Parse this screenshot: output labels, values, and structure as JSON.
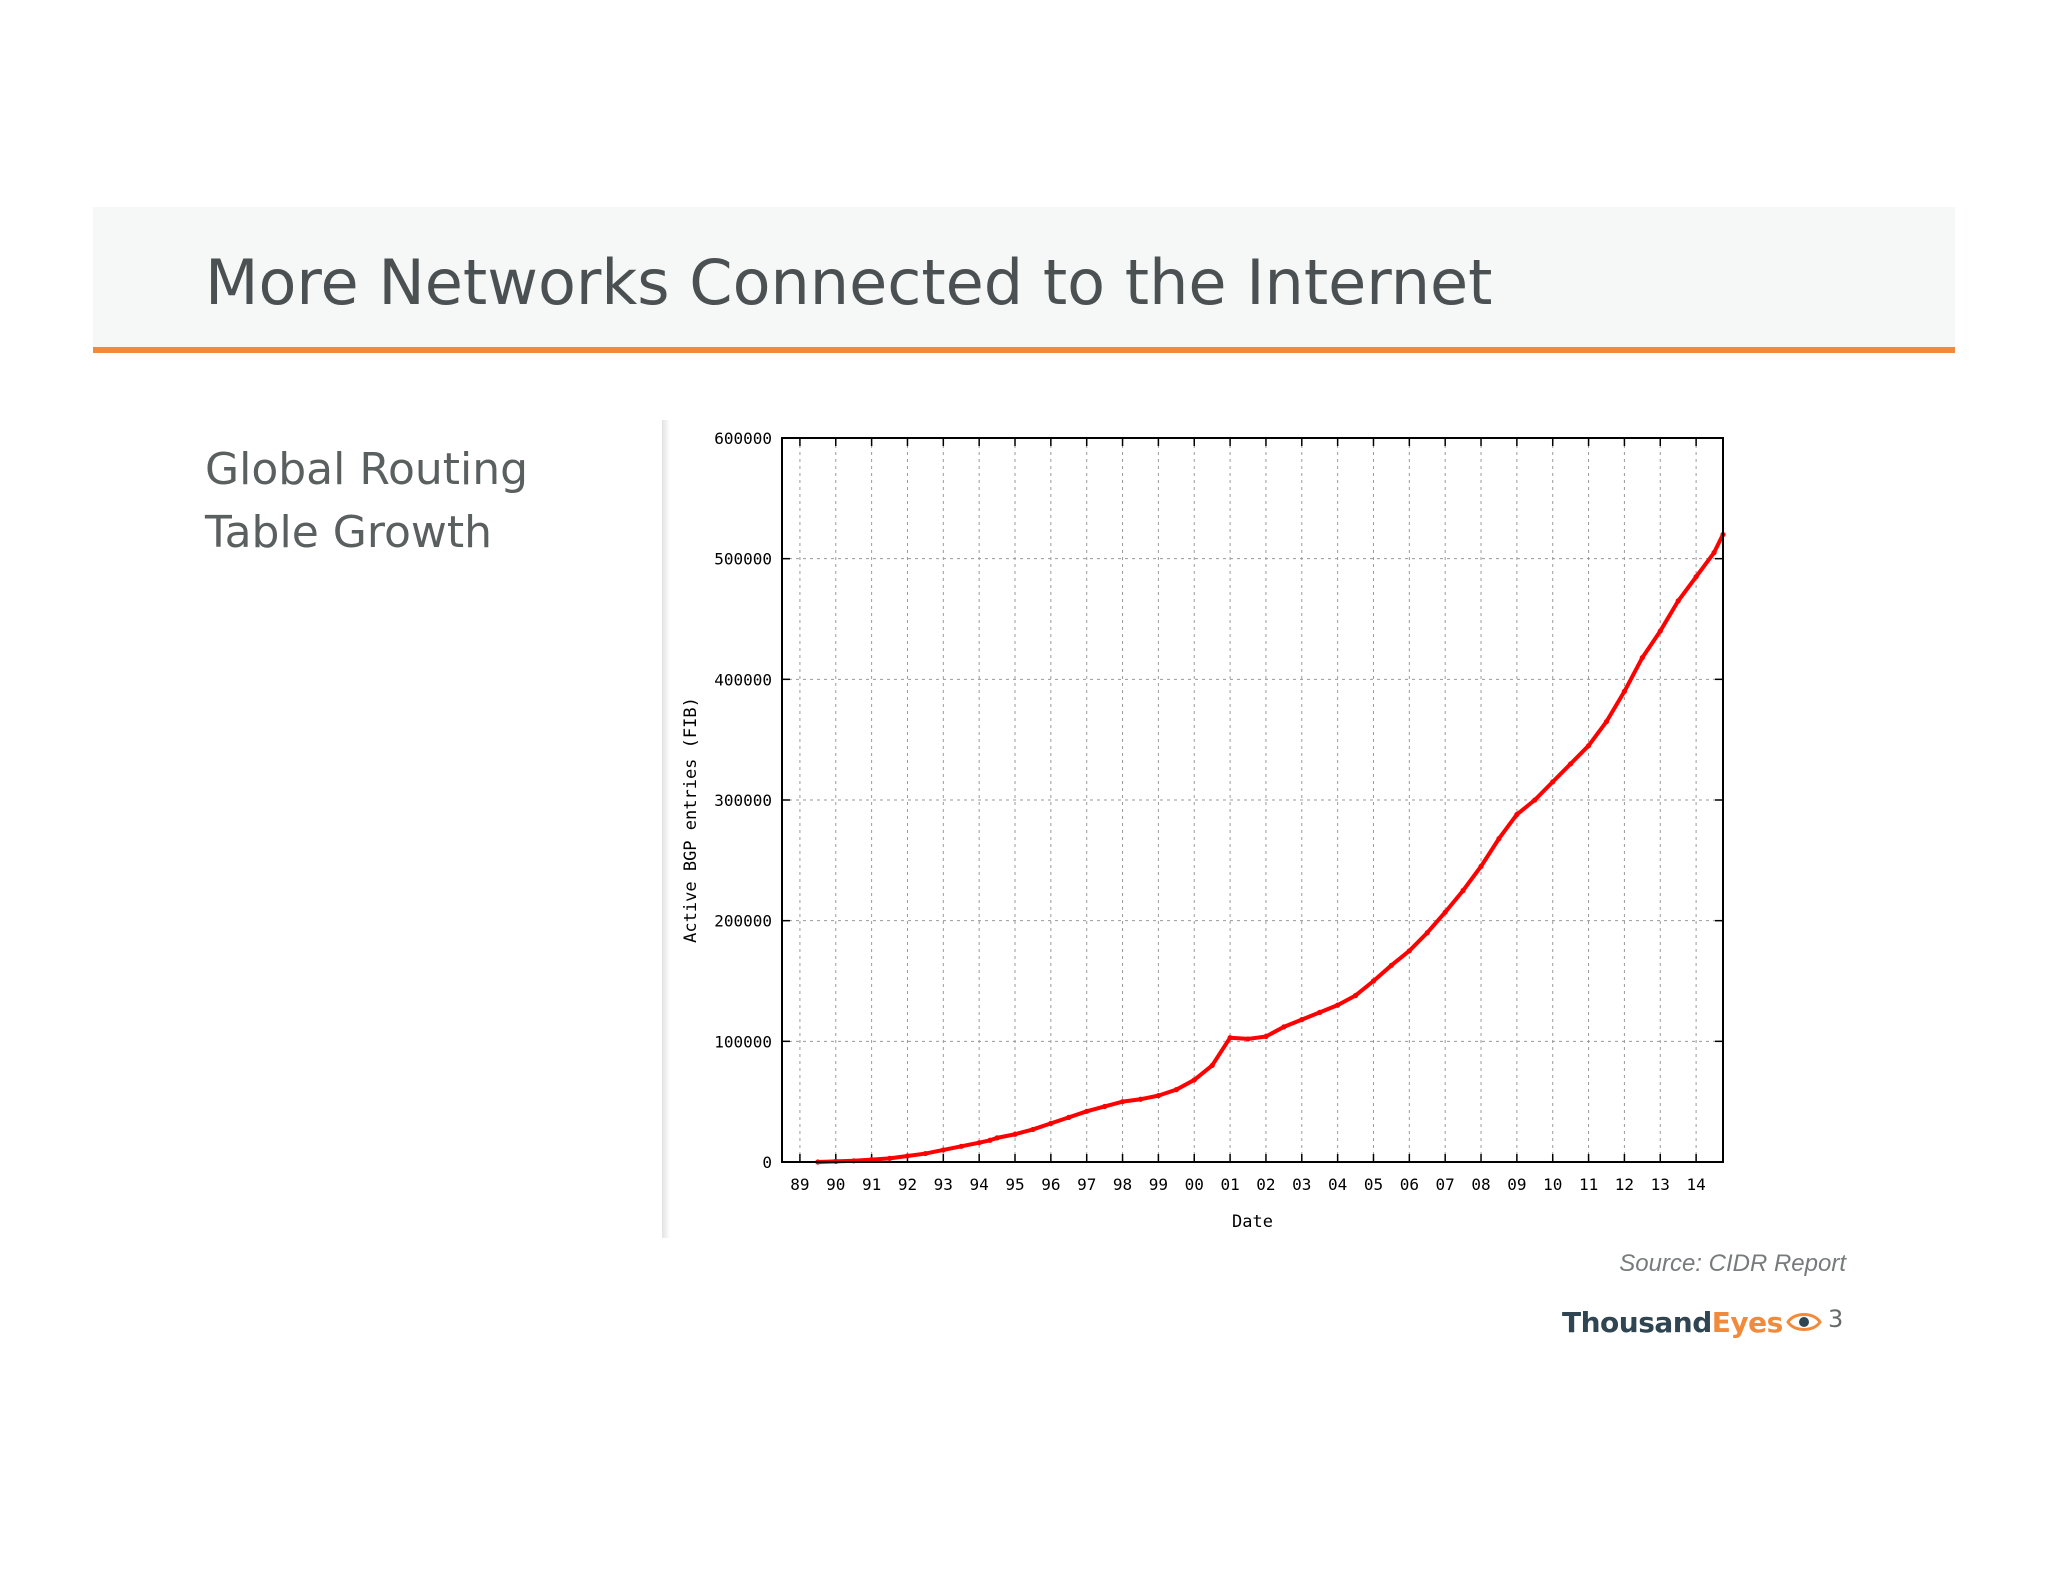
{
  "slide": {
    "title": "More Networks Connected to the Internet",
    "subtitle_lines": [
      "Global Routing",
      "Table Growth"
    ],
    "source": "Source: CIDR Report",
    "logo_part1": "Thousand",
    "logo_part2": "Eyes",
    "page_number": "3"
  },
  "colors": {
    "accent": "#f28a3c",
    "title_band": "#f6f7f7",
    "series": "#ff0000",
    "logo_dark": "#2f4652"
  },
  "chart_data": {
    "type": "scatter",
    "xlabel": "Date",
    "ylabel": "Active BGP entries (FIB)",
    "xlim": [
      1988.5,
      2014.75
    ],
    "ylim": [
      0,
      600000
    ],
    "grid": true,
    "x_tick_labels": [
      "89",
      "90",
      "91",
      "92",
      "93",
      "94",
      "95",
      "96",
      "97",
      "98",
      "99",
      "00",
      "01",
      "02",
      "03",
      "04",
      "05",
      "06",
      "07",
      "08",
      "09",
      "10",
      "11",
      "12",
      "13",
      "14"
    ],
    "y_tick_labels": [
      "0",
      "100000",
      "200000",
      "300000",
      "400000",
      "500000",
      "600000"
    ],
    "series": [
      {
        "x": [
          1989.5,
          1990.0,
          1990.5,
          1991.0,
          1991.5,
          1992.0,
          1992.5,
          1993.0,
          1993.5,
          1994.0,
          1994.3,
          1994.5,
          1995.0,
          1995.5,
          1996.0,
          1996.5,
          1997.0,
          1997.5,
          1998.0,
          1998.5,
          1999.0,
          1999.5,
          2000.0,
          2000.5,
          2001.0,
          2001.5,
          2002.0,
          2002.5,
          2003.0,
          2003.5,
          2004.0,
          2004.5,
          2005.0,
          2005.5,
          2006.0,
          2006.5,
          2007.0,
          2007.5,
          2008.0,
          2008.5,
          2009.0,
          2009.5,
          2010.0,
          2010.5,
          2011.0,
          2011.5,
          2012.0,
          2012.5,
          2013.0,
          2013.5,
          2014.0,
          2014.5,
          2014.75
        ],
        "y": [
          0,
          500,
          1000,
          2000,
          3000,
          5000,
          7000,
          10000,
          13000,
          16000,
          18000,
          20000,
          23000,
          27000,
          32000,
          37000,
          42000,
          46000,
          50000,
          52000,
          55000,
          60000,
          68000,
          80000,
          103000,
          102000,
          104000,
          112000,
          118000,
          124000,
          130000,
          138000,
          150000,
          163000,
          175000,
          190000,
          207000,
          225000,
          245000,
          268000,
          288000,
          300000,
          315000,
          330000,
          345000,
          365000,
          390000,
          418000,
          440000,
          465000,
          485000,
          505000,
          520000
        ]
      }
    ]
  }
}
